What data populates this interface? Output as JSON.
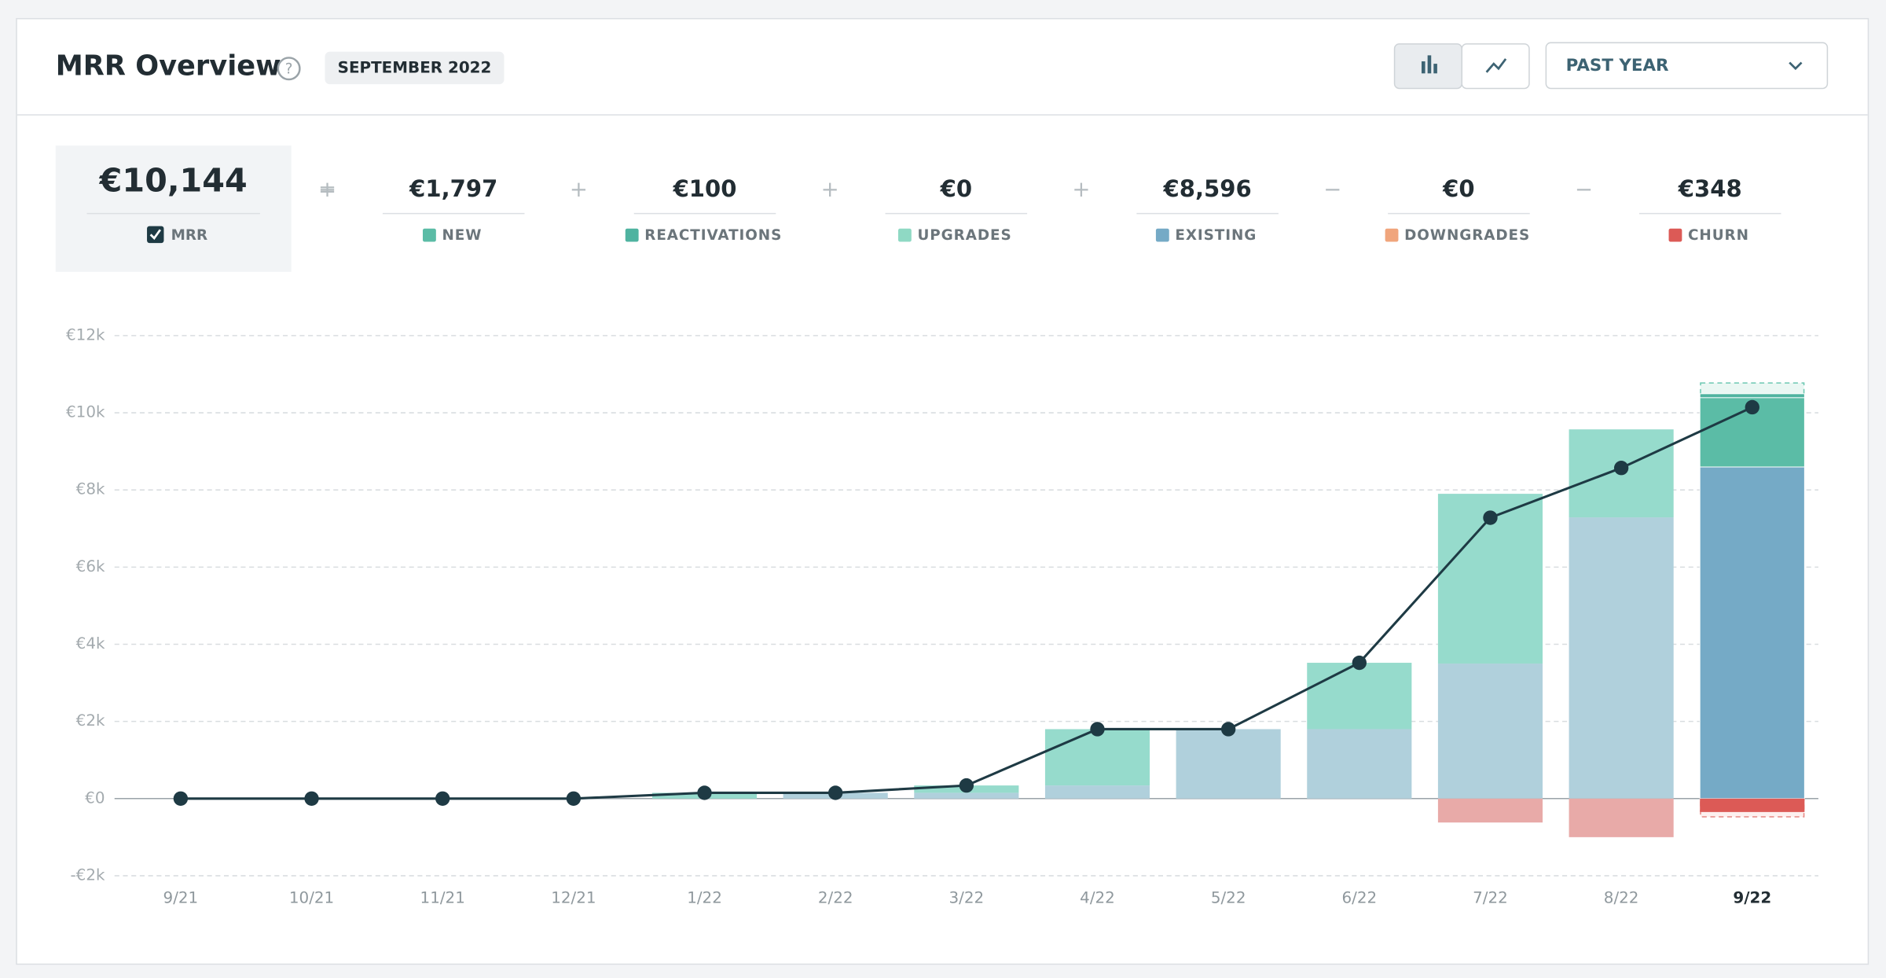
{
  "header": {
    "title": "MRR Overview",
    "period": "SEPTEMBER 2022",
    "range": "PAST YEAR"
  },
  "chart_data": {
    "type": "bar",
    "categories": [
      "9/21",
      "10/21",
      "11/21",
      "12/21",
      "1/22",
      "2/22",
      "3/22",
      "4/22",
      "5/22",
      "6/22",
      "7/22",
      "8/22",
      "9/22"
    ],
    "ylim": [
      -2000,
      12000
    ],
    "yticks": [
      {
        "value": -2000,
        "label": "-€2k"
      },
      {
        "value": 0,
        "label": "€0"
      },
      {
        "value": 2000,
        "label": "€2k"
      },
      {
        "value": 4000,
        "label": "€4k"
      },
      {
        "value": 6000,
        "label": "€6k"
      },
      {
        "value": 8000,
        "label": "€8k"
      },
      {
        "value": 10000,
        "label": "€10k"
      },
      {
        "value": 12000,
        "label": "€12k"
      }
    ],
    "grid": true,
    "line": {
      "name": "MRR",
      "total_label": "€10,144",
      "color": "#1e3a44",
      "values": [
        0,
        0,
        0,
        0,
        150,
        150,
        340,
        1800,
        1800,
        3520,
        7280,
        8570,
        10144
      ]
    },
    "stack_order": [
      3,
      0,
      1,
      2,
      4,
      5
    ],
    "series": [
      {
        "name": "NEW",
        "sign": "+",
        "total_label": "€1,797",
        "color": "#5bbca6",
        "faded_color": "#96dbcc",
        "values": [
          0,
          0,
          0,
          0,
          150,
          0,
          190,
          1460,
          0,
          1720,
          4400,
          2280,
          1797
        ]
      },
      {
        "name": "REACTIVATIONS",
        "sign": "+",
        "total_label": "€100",
        "color": "#4fb3a0",
        "faded_color": "#96dbcc",
        "values": [
          0,
          0,
          0,
          0,
          0,
          0,
          0,
          0,
          0,
          0,
          0,
          0,
          100
        ]
      },
      {
        "name": "UPGRADES",
        "sign": "+",
        "total_label": "€0",
        "color": "#8fd9c4",
        "faded_color": "#b8e8db",
        "values": [
          0,
          0,
          0,
          0,
          0,
          0,
          0,
          0,
          0,
          0,
          0,
          0,
          0
        ]
      },
      {
        "name": "EXISTING",
        "sign": "+",
        "total_label": "€8,596",
        "color": "#75aac6",
        "faded_color": "#b0d0dc",
        "values": [
          0,
          0,
          0,
          0,
          0,
          150,
          150,
          340,
          1800,
          1800,
          3500,
          7290,
          8596
        ]
      },
      {
        "name": "DOWNGRADES",
        "sign": "−",
        "total_label": "€0",
        "color": "#f0a57c",
        "faded_color": "#f5c9b0",
        "values": [
          0,
          0,
          0,
          0,
          0,
          0,
          0,
          0,
          0,
          0,
          0,
          0,
          0
        ]
      },
      {
        "name": "CHURN",
        "sign": "−",
        "total_label": "€348",
        "color": "#dc5a56",
        "faded_color": "#e8aaa8",
        "values": [
          0,
          0,
          0,
          0,
          0,
          0,
          0,
          0,
          0,
          0,
          -620,
          -1000,
          -348
        ]
      }
    ],
    "total_sign": "="
  }
}
